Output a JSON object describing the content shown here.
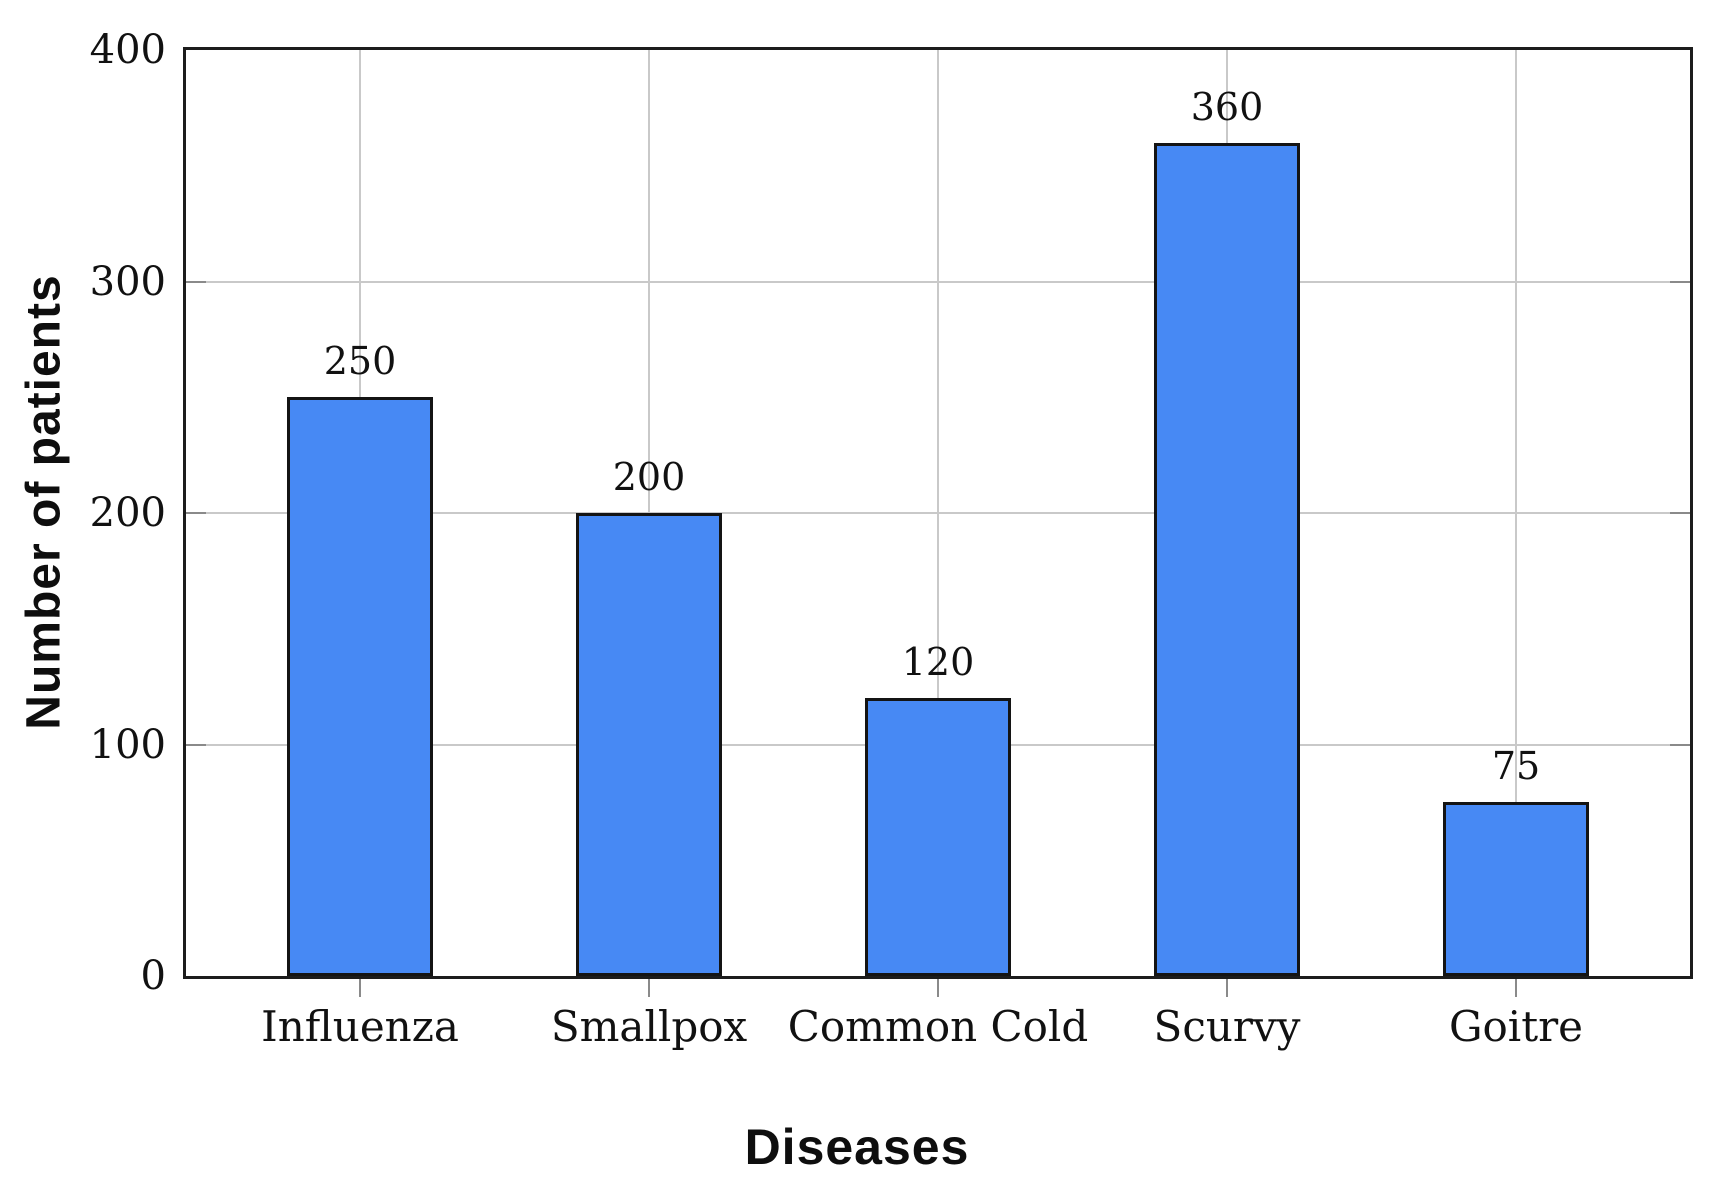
{
  "chart_data": {
    "type": "bar",
    "title": "",
    "xlabel": "Diseases",
    "ylabel": "Number of patients",
    "categories": [
      "Influenza",
      "Smallpox",
      "Common Cold",
      "Scurvy",
      "Goitre"
    ],
    "values": [
      250,
      200,
      120,
      360,
      75
    ],
    "bar_labels": [
      "250",
      "200",
      "120",
      "360",
      "75"
    ],
    "ylim": [
      0,
      400
    ],
    "yticks": [
      0,
      100,
      200,
      300,
      400
    ],
    "ytick_labels": [
      "0",
      "100",
      "200",
      "300",
      "400"
    ],
    "grid": true,
    "legend": "none",
    "colors": {
      "bar_fill": "#4789F4",
      "bar_border": "#141414",
      "gridline": "#c9c9c9",
      "frame": "#1c1c1c",
      "tick": "#8a8a8a",
      "text": "#111111",
      "background": "#ffffff"
    }
  }
}
